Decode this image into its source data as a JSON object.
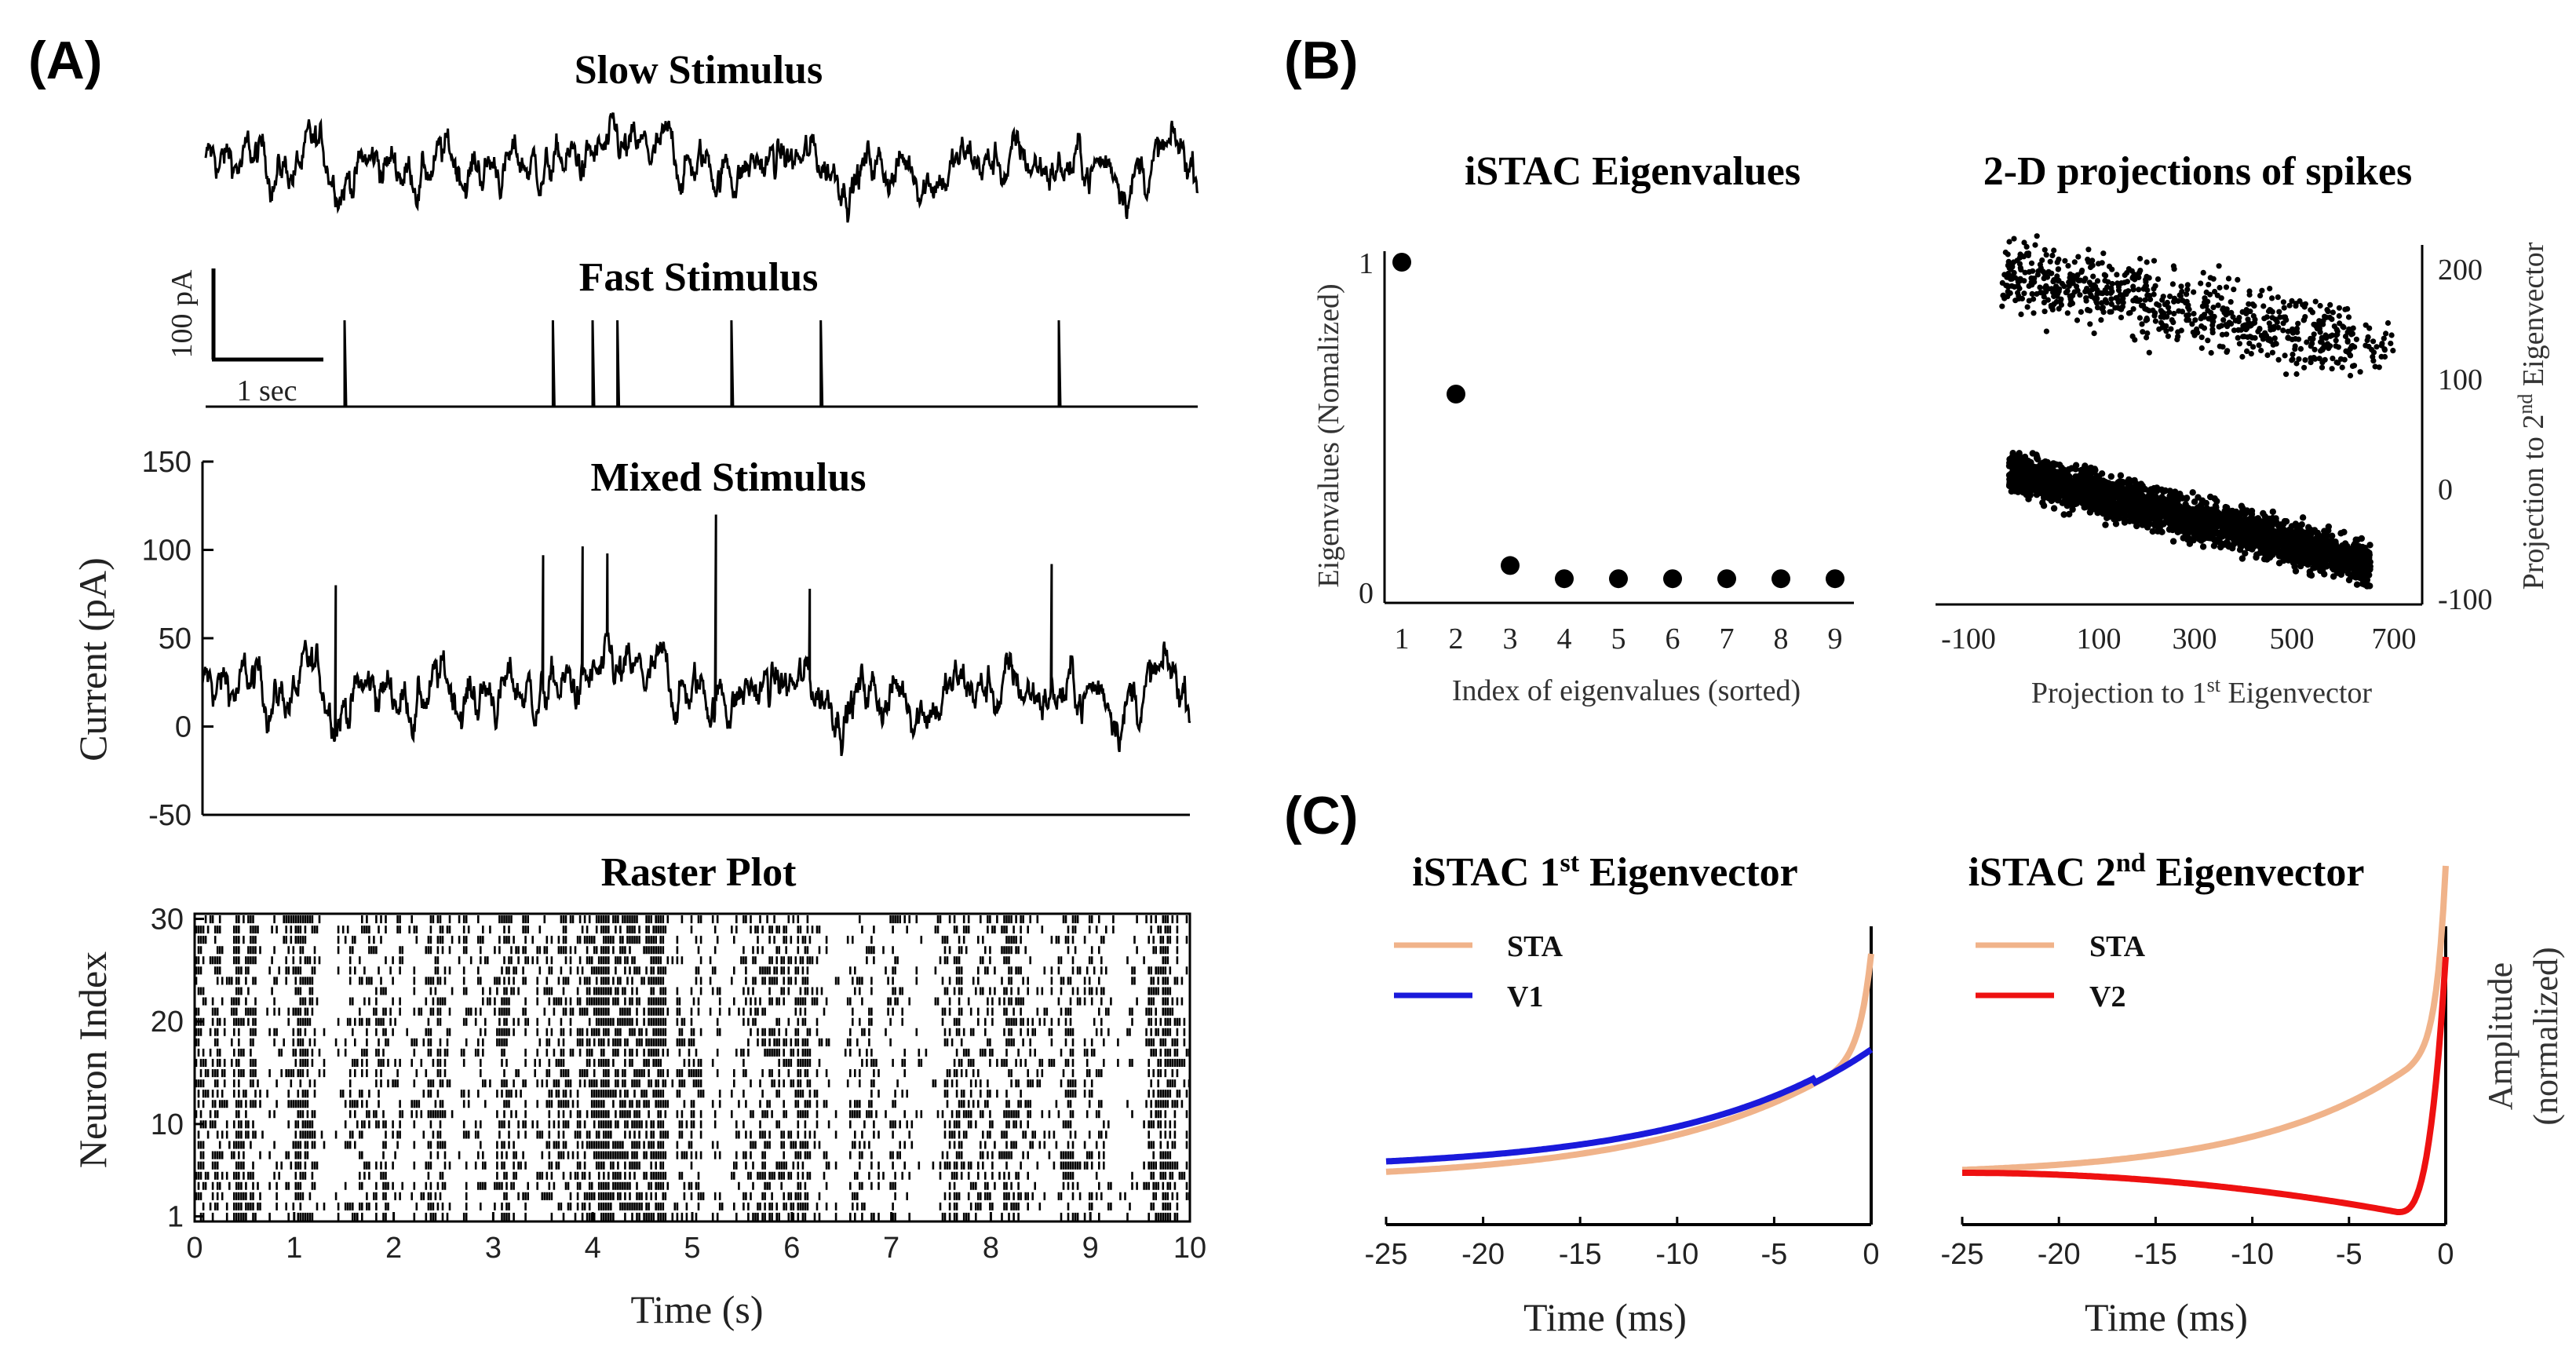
{
  "panels": {
    "A": "(A)",
    "B": "(B)",
    "C": "(C)"
  },
  "colors": {
    "trace": "#000000",
    "sta": "#f0b38a",
    "v1": "#1a1adb",
    "v2": "#ee1111"
  },
  "panel_a": {
    "slow_title": "Slow Stimulus",
    "fast_title": "Fast Stimulus",
    "mixed_title": "Mixed Stimulus",
    "raster_title": "Raster Plot",
    "scalebar_y": "100 pA",
    "scalebar_x": "1 sec"
  },
  "chart_data": [
    {
      "id": "slow",
      "type": "line",
      "title": "Slow Stimulus",
      "description_values": "noise trace",
      "xlim": [
        0,
        10
      ]
    },
    {
      "id": "fast",
      "type": "line",
      "title": "Fast Stimulus",
      "pulse_times": [
        1.4,
        3.5,
        3.9,
        4.15,
        5.3,
        6.2,
        8.6
      ],
      "pulse_amplitude": 80,
      "xlim": [
        0,
        10
      ]
    },
    {
      "id": "mixed",
      "type": "line",
      "title": "Mixed Stimulus",
      "xlim": [
        0,
        10
      ],
      "ylim": [
        -50,
        150
      ],
      "yticks": [
        "150",
        "100",
        "50",
        "0",
        "-50"
      ],
      "ylabel": "Current (pA)",
      "pulse_times": [
        1.35,
        3.45,
        3.85,
        4.1,
        5.2,
        6.15,
        8.6
      ],
      "pulse_peaks": [
        80,
        97,
        102,
        98,
        120,
        78,
        92
      ]
    },
    {
      "id": "raster",
      "type": "scatter",
      "title": "Raster Plot",
      "xlabel": "Time (s)",
      "ylabel": "Neuron Index",
      "xlim": [
        0,
        10
      ],
      "ylim": [
        1,
        30
      ],
      "xticks": [
        "0",
        "1",
        "2",
        "3",
        "4",
        "5",
        "6",
        "7",
        "8",
        "9",
        "10"
      ],
      "yticks": [
        "30",
        "20",
        "10",
        "1"
      ],
      "neurons": 30
    },
    {
      "id": "eigenvalues",
      "type": "scatter",
      "title": "iSTAC Eigenvalues",
      "xlabel": "Index of eigenvalues (sorted)",
      "ylabel": "Eigenvalues (Nomalized)",
      "x": [
        1,
        2,
        3,
        4,
        5,
        6,
        7,
        8,
        9
      ],
      "y": [
        1.0,
        0.6,
        0.08,
        0.04,
        0.04,
        0.04,
        0.04,
        0.04,
        0.04
      ],
      "xticks": [
        "1",
        "2",
        "3",
        "4",
        "5",
        "6",
        "7",
        "8",
        "9"
      ],
      "yticks": [
        "1",
        "0"
      ],
      "ylim": [
        0,
        1
      ]
    },
    {
      "id": "projections",
      "type": "scatter",
      "title": "2-D projections of spikes",
      "xlabel": "Projection to 1st Eigenvector",
      "ylabel": "Projection to 2nd Eigenvector",
      "xlim": [
        -100,
        700
      ],
      "ylim": [
        -100,
        220
      ],
      "xticks": [
        "-100",
        "100",
        "300",
        "500",
        "700"
      ],
      "yticks": [
        "200",
        "100",
        "0",
        "-100"
      ],
      "clusters": [
        {
          "name": "lower",
          "x_range": [
            -20,
            640
          ],
          "y_center_at_x0": 30,
          "slope": -0.12
        },
        {
          "name": "upper",
          "x_range": [
            0,
            620
          ],
          "y_center_at_x0": 180,
          "slope": -0.15
        }
      ]
    },
    {
      "id": "eigvec1",
      "type": "line",
      "title_parts": [
        "iSTAC 1",
        "st",
        " Eigenvector"
      ],
      "xlabel": "Time (ms)",
      "xlim": [
        -25,
        0
      ],
      "xticks": [
        "-25",
        "-20",
        "-15",
        "-10",
        "-5",
        "0"
      ],
      "series": [
        {
          "name": "STA",
          "color": "#f0b38a"
        },
        {
          "name": "V1",
          "color": "#1a1adb"
        }
      ]
    },
    {
      "id": "eigvec2",
      "type": "line",
      "title_parts": [
        "iSTAC 2",
        "nd",
        " Eigenvector"
      ],
      "xlabel": "Time (ms)",
      "ylabel_line1": "Amplitude",
      "ylabel_line2": "(normalized)",
      "xlim": [
        -25,
        0
      ],
      "xticks": [
        "-25",
        "-20",
        "-15",
        "-10",
        "-5",
        "0"
      ],
      "series": [
        {
          "name": "STA",
          "color": "#f0b38a"
        },
        {
          "name": "V2",
          "color": "#ee1111"
        }
      ]
    }
  ],
  "panel_b": {
    "eig_title": "iSTAC Eigenvalues",
    "proj_title": "2-D projections of spikes",
    "proj_xlabel_a": "Projection to 1",
    "proj_xlabel_sup": "st",
    "proj_xlabel_b": " Eigenvector",
    "proj_ylabel_a": "Projection to 2",
    "proj_ylabel_sup": "nd",
    "proj_ylabel_b": " Eigenvector"
  }
}
